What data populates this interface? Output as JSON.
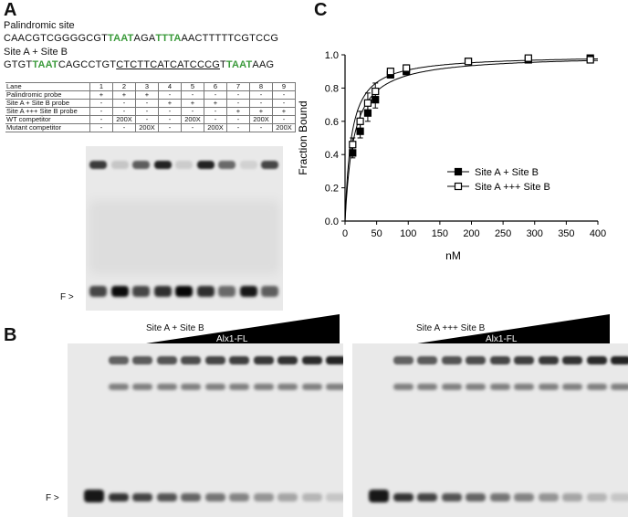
{
  "panel_a": {
    "letter": "A",
    "palindromic_label": "Palindromic site",
    "palindromic_seq": [
      {
        "t": "CAACGTCGGGGCGT",
        "g": false
      },
      {
        "t": "TAAT",
        "g": true
      },
      {
        "t": "AGA",
        "g": false
      },
      {
        "t": "TTTA",
        "g": true
      },
      {
        "t": "AACTTTTTCGTCCG",
        "g": false
      }
    ],
    "siteab_label": "Site A + Site B",
    "siteab_seq": [
      {
        "t": "GTGT",
        "g": false
      },
      {
        "t": "TAAT",
        "g": true
      },
      {
        "t": "CAGCCTGT",
        "g": false
      },
      {
        "t": "CTCTTCATCATCCCG",
        "g": false,
        "u": true
      },
      {
        "t": "T",
        "g": false
      },
      {
        "t": "TAAT",
        "g": true
      },
      {
        "t": "AAG",
        "g": false
      }
    ],
    "table": {
      "rows": [
        {
          "label": "Lane",
          "cells": [
            "1",
            "2",
            "3",
            "4",
            "5",
            "6",
            "7",
            "8",
            "9"
          ]
        },
        {
          "label": "Palindromic probe",
          "cells": [
            "+",
            "+",
            "+",
            "-",
            "-",
            "-",
            "-",
            "-",
            "-"
          ]
        },
        {
          "label": "Site A + Site B probe",
          "cells": [
            "-",
            "-",
            "-",
            "+",
            "+",
            "+",
            "-",
            "-",
            "-"
          ]
        },
        {
          "label": "Site A +++ Site B probe",
          "cells": [
            "-",
            "-",
            "-",
            "-",
            "-",
            "-",
            "+",
            "+",
            "+"
          ]
        },
        {
          "label": "WT competitor",
          "cells": [
            "-",
            "200X",
            "-",
            "-",
            "200X",
            "-",
            "-",
            "200X",
            "-"
          ]
        },
        {
          "label": "Mutant competitor",
          "cells": [
            "-",
            "-",
            "200X",
            "-",
            "-",
            "200X",
            "-",
            "-",
            "200X"
          ]
        }
      ]
    },
    "free_label": "F >"
  },
  "panel_b": {
    "letter": "B",
    "left_title": "Site A + Site B",
    "left_protein": "Alx1-FL",
    "right_title": "Site A +++ Site B",
    "right_protein": "Alx1-FL",
    "free_label": "F >"
  },
  "panel_c": {
    "letter": "C"
  },
  "chart_data": {
    "type": "scatter",
    "xlabel": "nM",
    "ylabel": "Fraction Bound",
    "xlim": [
      0,
      400
    ],
    "ylim": [
      0,
      1.0
    ],
    "xticks": [
      "0",
      "50",
      "100",
      "150",
      "200",
      "250",
      "300",
      "350",
      "400"
    ],
    "yticks": [
      "0.0",
      "0.2",
      "0.4",
      "0.6",
      "0.8",
      "1.0"
    ],
    "legend_position": "center-right",
    "series": [
      {
        "name": "Site A + Site B",
        "marker": "filled-square",
        "x": [
          12,
          24,
          36,
          48,
          72,
          97,
          195,
          290,
          388
        ],
        "y": [
          0.41,
          0.54,
          0.65,
          0.73,
          0.88,
          0.9,
          0.96,
          0.97,
          0.98
        ],
        "err": [
          0.03,
          0.04,
          0.05,
          0.05,
          0.02,
          0.02,
          0.01,
          0.01,
          0.01
        ]
      },
      {
        "name": "Site A +++ Site B",
        "marker": "open-square",
        "x": [
          12,
          24,
          36,
          48,
          72,
          97,
          195,
          290,
          388
        ],
        "y": [
          0.46,
          0.6,
          0.71,
          0.78,
          0.9,
          0.92,
          0.96,
          0.98,
          0.97
        ],
        "err": [
          0.04,
          0.06,
          0.06,
          0.05,
          0.02,
          0.02,
          0.01,
          0.01,
          0.01
        ]
      }
    ]
  }
}
